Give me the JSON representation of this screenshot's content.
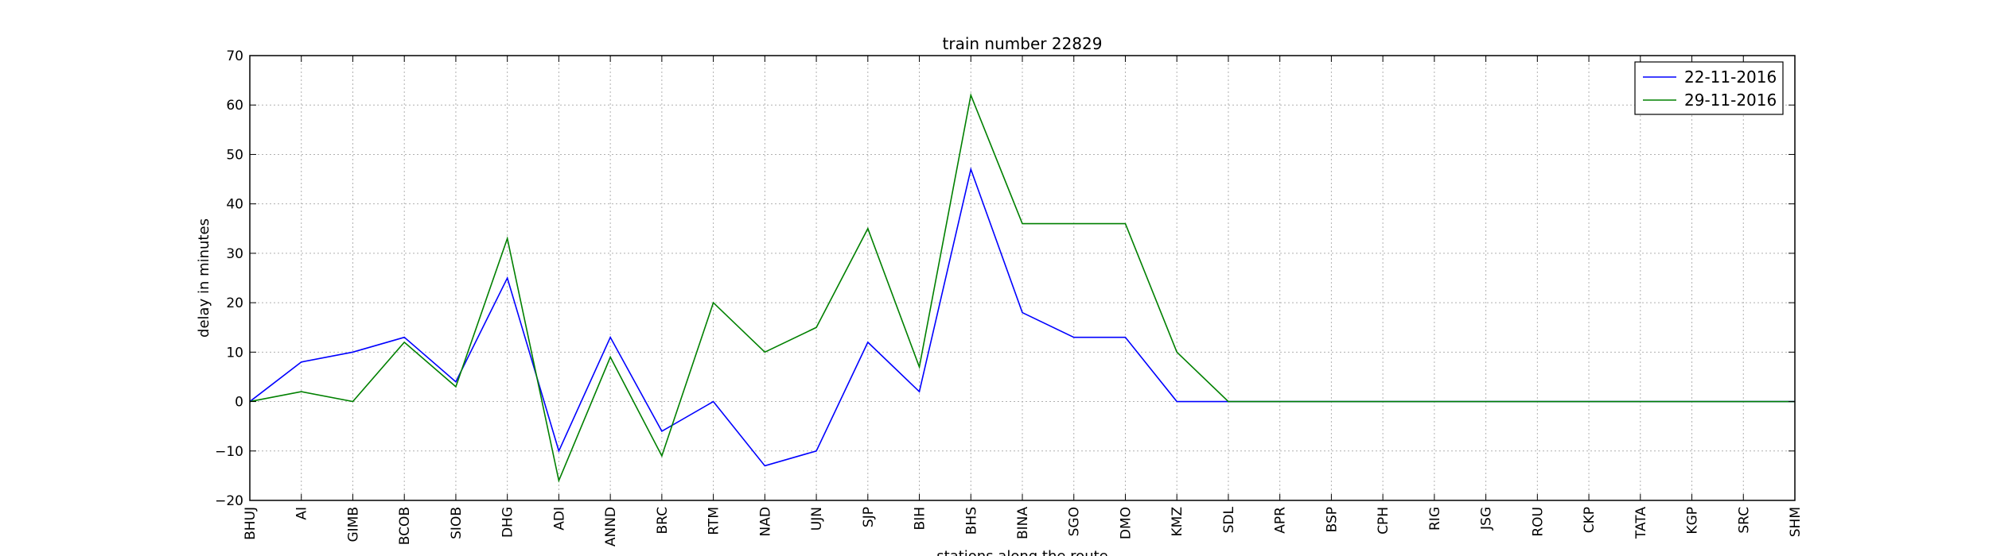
{
  "chart_data": {
    "type": "line",
    "title": "train number 22829",
    "xlabel": "stations along the route",
    "ylabel": "delay in minutes",
    "ylim": [
      -20,
      70
    ],
    "yticks": [
      -20,
      -10,
      0,
      10,
      20,
      30,
      40,
      50,
      60,
      70
    ],
    "ytick_labels": [
      "−20",
      "−10",
      "0",
      "10",
      "20",
      "30",
      "40",
      "50",
      "60",
      "70"
    ],
    "grid": true,
    "legend_position": "top-right",
    "categories": [
      "BHUJ",
      "AI",
      "GIMB",
      "BCOB",
      "SIOB",
      "DHG",
      "ADI",
      "ANND",
      "BRC",
      "RTM",
      "NAD",
      "UJN",
      "SJP",
      "BIH",
      "BHS",
      "BINA",
      "SGO",
      "DMO",
      "KMZ",
      "SDL",
      "APR",
      "BSP",
      "CPH",
      "RIG",
      "JSG",
      "ROU",
      "CKP",
      "TATA",
      "KGP",
      "SRC",
      "SHM"
    ],
    "series": [
      {
        "name": "22-11-2016",
        "color": "#0000ff",
        "values": [
          0,
          8,
          10,
          13,
          4,
          25,
          -10,
          13,
          -6,
          0,
          -13,
          -10,
          12,
          2,
          47,
          18,
          13,
          13,
          0,
          0,
          0,
          0,
          0,
          0,
          0,
          0,
          0,
          0,
          0,
          0,
          0
        ]
      },
      {
        "name": "29-11-2016",
        "color": "#008000",
        "values": [
          0,
          2,
          0,
          12,
          3,
          33,
          -16,
          9,
          -11,
          20,
          10,
          15,
          35,
          7,
          62,
          36,
          36,
          36,
          10,
          0,
          0,
          0,
          0,
          0,
          0,
          0,
          0,
          0,
          0,
          0,
          0
        ]
      }
    ]
  }
}
